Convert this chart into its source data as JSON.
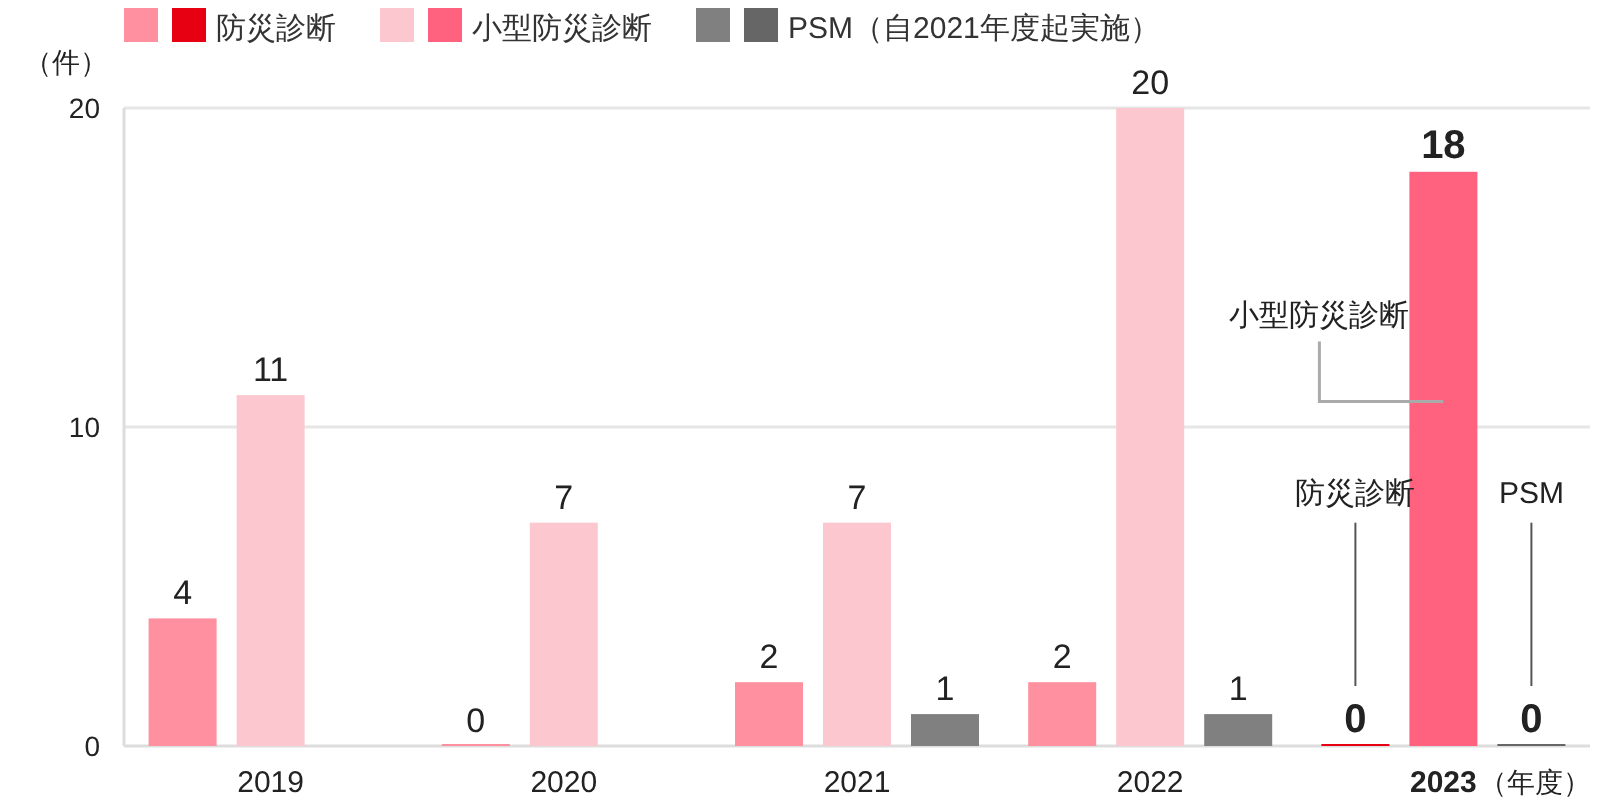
{
  "chart_data": {
    "type": "bar",
    "ylabel": "（件）",
    "xlabel": "（年度）",
    "categories": [
      "2019",
      "2020",
      "2021",
      "2022",
      "2023"
    ],
    "series": [
      {
        "name": "防災診断",
        "colors": [
          "#ff909f",
          "#ff909f",
          "#ff909f",
          "#ff909f",
          "#e60012"
        ],
        "values": [
          4,
          0,
          2,
          2,
          0
        ]
      },
      {
        "name": "小型防災診断",
        "colors": [
          "#fdc7d0",
          "#fdc7d0",
          "#fdc7d0",
          "#fdc7d0",
          "#ff627e"
        ],
        "values": [
          11,
          7,
          7,
          20,
          18
        ]
      },
      {
        "name": "PSM（自2021年度起実施）",
        "colors": [
          null,
          null,
          "#808080",
          "#808080",
          "#666666"
        ],
        "values": [
          null,
          null,
          1,
          1,
          0
        ]
      }
    ],
    "ylim": [
      0,
      20
    ],
    "yticks": [
      0,
      10,
      20
    ],
    "grid": "y",
    "legend": "top left",
    "data_labels": true,
    "annotations": [
      "防災診断",
      "小型防災診断",
      "PSM"
    ]
  }
}
